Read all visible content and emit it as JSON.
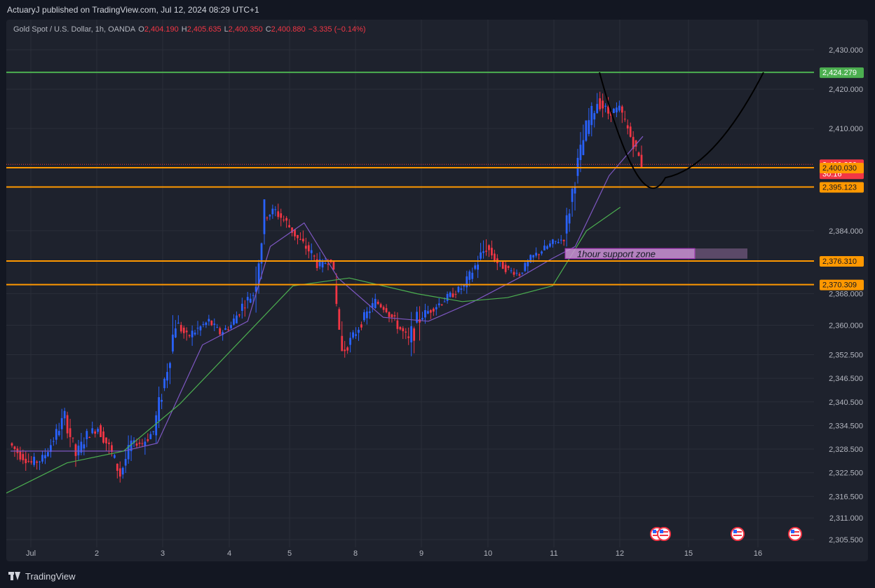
{
  "header": {
    "published_line": "ActuaryJ published on TradingView.com, Jul 12, 2024 08:29 UTC+1"
  },
  "legend": {
    "symbol": "Gold Spot / U.S. Dollar, 1h, OANDA",
    "o_label": "O",
    "o_value": "2,404.190",
    "h_label": "H",
    "h_value": "2,405.635",
    "l_label": "L",
    "l_value": "2,400.350",
    "c_label": "C",
    "c_value": "2,400.880",
    "change": "−3.335 (−0.14%)"
  },
  "footer": {
    "brand": "TradingView"
  },
  "colors": {
    "bg": "#131722",
    "pane": "#1e222d",
    "grid": "#2a2e39",
    "up": "#2962ff",
    "down": "#f23645",
    "ma_fast": "#7e57c2",
    "ma_slow": "#4caf50",
    "resistance": "#4caf50",
    "level": "#ff9800",
    "arc": "#000000"
  },
  "chart_data": {
    "type": "candlestick",
    "y_axis_ticks": [
      "2,430.000",
      "2,420.000",
      "2,410.000",
      "2,384.000",
      "2,368.000",
      "2,360.000",
      "2,352.500",
      "2,346.500",
      "2,340.500",
      "2,334.500",
      "2,328.500",
      "2,322.500",
      "2,316.500",
      "2,311.000",
      "2,305.500"
    ],
    "y_axis_tick_values": [
      2430,
      2420,
      2410,
      2384,
      2368,
      2360,
      2352.5,
      2346.5,
      2340.5,
      2334.5,
      2328.5,
      2322.5,
      2316.5,
      2311,
      2305.5
    ],
    "x_axis_labels": [
      "Jul",
      "2",
      "3",
      "4",
      "5",
      "8",
      "9",
      "10",
      "11",
      "12",
      "15",
      "16"
    ],
    "horizontal_levels": [
      {
        "value": 2424.279,
        "label": "2,424.279",
        "color": "#4caf50"
      },
      {
        "value": 2400.88,
        "label": "2,400.880",
        "sublabel": "30:16",
        "color": "#f23645"
      },
      {
        "value": 2400.03,
        "label": "2,400.030",
        "color": "#ff9800"
      },
      {
        "value": 2395.123,
        "label": "2,395.123",
        "color": "#ff9800"
      },
      {
        "value": 2376.31,
        "label": "2,376.310",
        "color": "#ff9800"
      },
      {
        "value": 2370.309,
        "label": "2,370.309",
        "color": "#ff9800"
      }
    ],
    "annotation": "1hour support zone",
    "ohlc_anchors": [
      [
        0,
        2330,
        2334,
        2325,
        2327
      ],
      [
        1,
        2327,
        2330,
        2322,
        2325
      ],
      [
        2,
        2325,
        2329,
        2320,
        2326
      ],
      [
        3,
        2326,
        2333,
        2324,
        2331
      ],
      [
        4,
        2331,
        2339,
        2328,
        2337
      ],
      [
        5,
        2337,
        2338,
        2324,
        2327
      ],
      [
        6,
        2327,
        2334,
        2324,
        2332
      ],
      [
        7,
        2332,
        2336,
        2328,
        2334
      ],
      [
        8,
        2334,
        2336,
        2325,
        2329
      ],
      [
        9,
        2329,
        2333,
        2320,
        2322
      ],
      [
        10,
        2322,
        2332,
        2321,
        2330
      ],
      [
        11,
        2330,
        2332,
        2327,
        2330
      ],
      [
        12,
        2330,
        2335,
        2326,
        2333
      ],
      [
        13,
        2333,
        2348,
        2330,
        2346
      ],
      [
        14,
        2346,
        2366,
        2344,
        2361
      ],
      [
        15,
        2361,
        2364,
        2355,
        2357
      ],
      [
        16,
        2357,
        2363,
        2354,
        2359
      ],
      [
        17,
        2359,
        2364,
        2356,
        2361
      ],
      [
        18,
        2361,
        2363,
        2356,
        2358
      ],
      [
        19,
        2358,
        2362,
        2356,
        2360
      ],
      [
        20,
        2360,
        2367,
        2358,
        2365
      ],
      [
        21,
        2365,
        2369,
        2360,
        2368
      ],
      [
        22,
        2368,
        2381,
        2351,
        2388
      ],
      [
        23,
        2388,
        2392,
        2383,
        2389
      ],
      [
        24,
        2389,
        2394,
        2384,
        2386
      ],
      [
        25,
        2386,
        2388,
        2380,
        2382
      ],
      [
        26,
        2382,
        2385,
        2376,
        2379
      ],
      [
        27,
        2379,
        2382,
        2370,
        2375
      ],
      [
        28,
        2375,
        2380,
        2373,
        2377
      ],
      [
        29,
        2377,
        2381,
        2360,
        2353
      ],
      [
        30,
        2353,
        2360,
        2350,
        2357
      ],
      [
        31,
        2357,
        2364,
        2355,
        2362
      ],
      [
        32,
        2362,
        2368,
        2360,
        2366
      ],
      [
        33,
        2366,
        2368,
        2362,
        2364
      ],
      [
        34,
        2364,
        2366,
        2357,
        2360
      ],
      [
        35,
        2360,
        2362,
        2352,
        2356
      ],
      [
        36,
        2356,
        2370,
        2350,
        2362
      ],
      [
        37,
        2362,
        2366,
        2358,
        2364
      ],
      [
        38,
        2364,
        2368,
        2361,
        2366
      ],
      [
        39,
        2366,
        2370,
        2363,
        2368
      ],
      [
        40,
        2368,
        2372,
        2366,
        2370
      ],
      [
        41,
        2370,
        2377,
        2368,
        2375
      ],
      [
        42,
        2375,
        2386,
        2372,
        2380
      ],
      [
        43,
        2380,
        2383,
        2374,
        2376
      ],
      [
        44,
        2376,
        2378,
        2371,
        2374
      ],
      [
        45,
        2374,
        2376,
        2371,
        2373
      ],
      [
        46,
        2373,
        2378,
        2372,
        2377
      ],
      [
        47,
        2377,
        2381,
        2375,
        2379
      ],
      [
        48,
        2379,
        2383,
        2377,
        2381
      ],
      [
        49,
        2381,
        2384,
        2379,
        2382
      ],
      [
        50,
        2382,
        2400,
        2380,
        2398
      ],
      [
        51,
        2398,
        2412,
        2396,
        2410
      ],
      [
        52,
        2410,
        2424,
        2408,
        2417
      ],
      [
        53,
        2417,
        2420,
        2410,
        2414
      ],
      [
        54,
        2414,
        2418,
        2411,
        2415
      ],
      [
        55,
        2415,
        2416,
        2405,
        2408
      ],
      [
        56,
        2408,
        2410,
        2400,
        2401
      ]
    ],
    "ma_fast_anchors": [
      [
        0,
        2328
      ],
      [
        10,
        2328
      ],
      [
        13,
        2330
      ],
      [
        17,
        2355
      ],
      [
        21,
        2361
      ],
      [
        23,
        2380
      ],
      [
        26,
        2386
      ],
      [
        29,
        2372
      ],
      [
        33,
        2362
      ],
      [
        37,
        2361
      ],
      [
        41,
        2366
      ],
      [
        45,
        2372
      ],
      [
        48,
        2377
      ],
      [
        50,
        2380
      ],
      [
        53,
        2398
      ],
      [
        56,
        2408
      ]
    ],
    "ma_slow_anchors": [
      [
        -2,
        2315
      ],
      [
        5,
        2325
      ],
      [
        10,
        2328
      ],
      [
        15,
        2340
      ],
      [
        21,
        2358
      ],
      [
        25,
        2370
      ],
      [
        30,
        2372
      ],
      [
        36,
        2368
      ],
      [
        40,
        2366
      ],
      [
        44,
        2367
      ],
      [
        48,
        2370
      ],
      [
        51,
        2384
      ],
      [
        54,
        2390
      ]
    ]
  }
}
